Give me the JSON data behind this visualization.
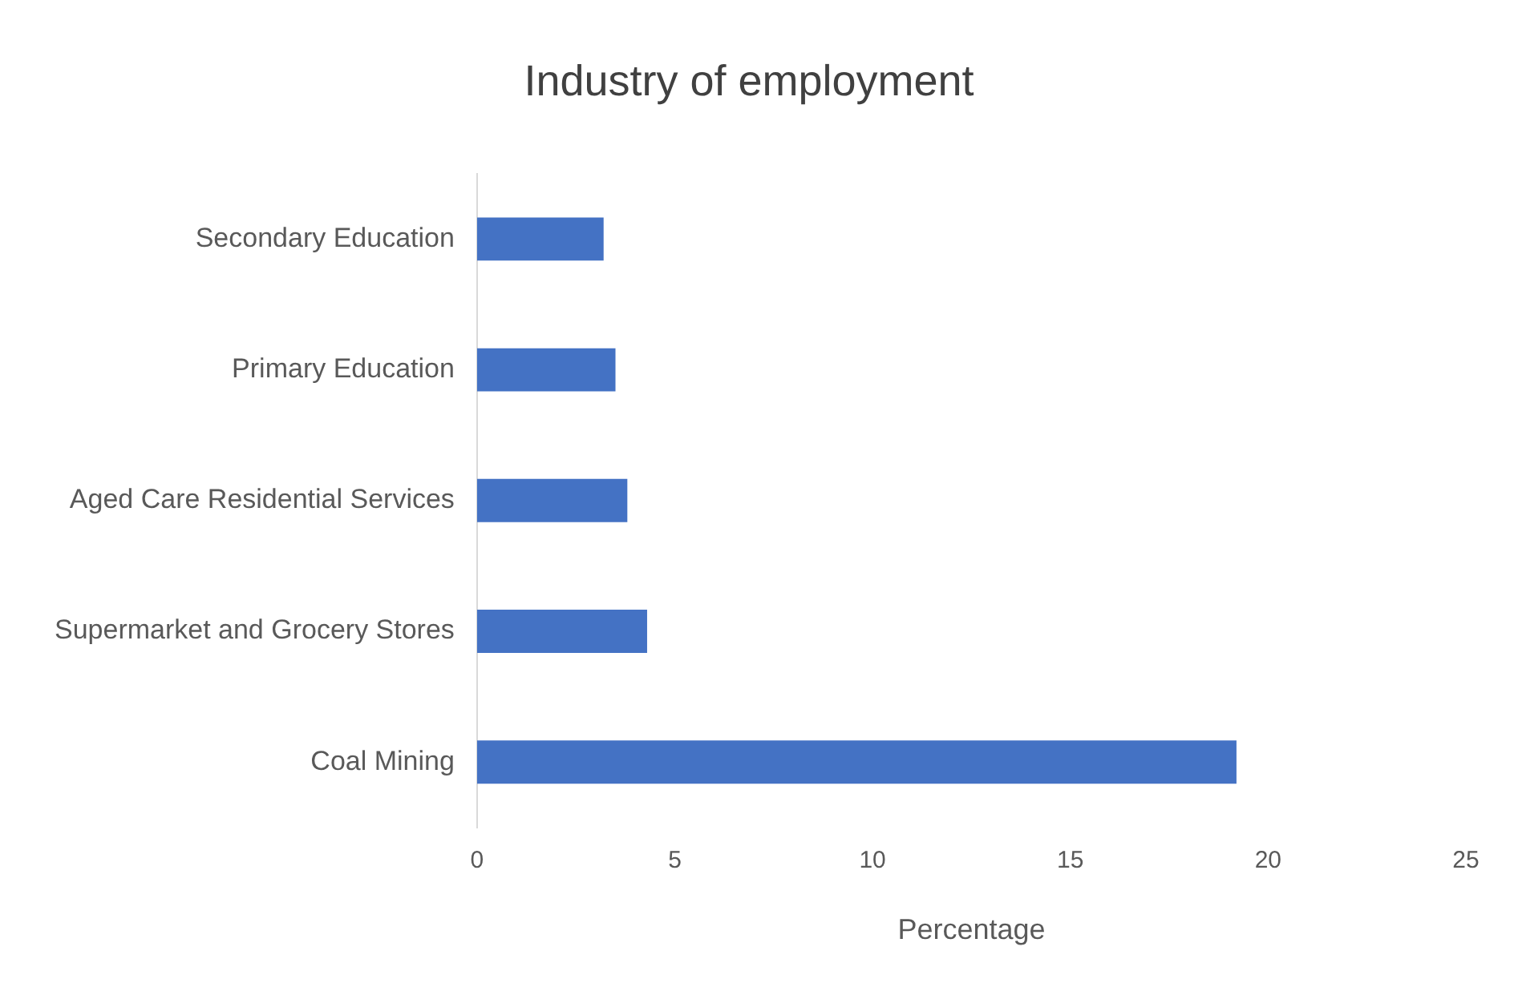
{
  "chart_data": {
    "type": "bar",
    "orientation": "horizontal",
    "title": "Industry of employment",
    "xlabel": "Percentage",
    "categories": [
      "Secondary Education",
      "Primary Education",
      "Aged Care Residential Services",
      "Supermarket and Grocery Stores",
      "Coal Mining"
    ],
    "values": [
      3.2,
      3.5,
      3.8,
      4.3,
      19.2
    ],
    "color": "#4472c4",
    "xlim": [
      0,
      25
    ],
    "xticks": [
      0,
      5,
      10,
      15,
      20,
      25
    ],
    "grid": false,
    "legend": false
  }
}
